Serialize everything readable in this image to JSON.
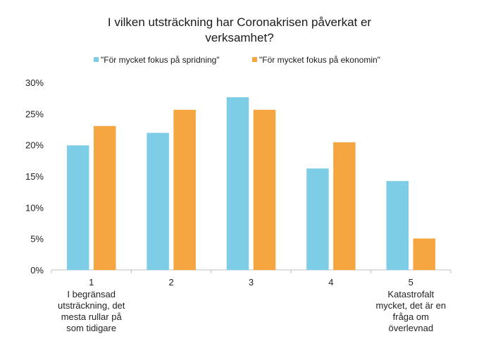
{
  "chart_data": {
    "type": "bar",
    "title": "I vilken utsträckning har Coronakrisen påverkat er verksamhet?",
    "title_lines": [
      "I vilken utsträckning har Coronakrisen påverkat er",
      "verksamhet?"
    ],
    "categories": [
      "1",
      "2",
      "3",
      "4",
      "5"
    ],
    "category_sublabels": [
      [
        "I begränsad",
        "utsträckning, det",
        "mesta rullar på",
        "som tidigare"
      ],
      [],
      [],
      [],
      [
        "Katastrofalt",
        "mycket, det är en",
        "fråga om",
        "överlevnad"
      ]
    ],
    "series": [
      {
        "name": "\"För mycket fokus på spridning\"",
        "color": "#7ECDE6",
        "values": [
          19.9,
          21.9,
          27.6,
          16.2,
          14.2
        ]
      },
      {
        "name": "\"För mycket fokus på ekonomin\"",
        "color": "#F5A641",
        "values": [
          23.0,
          25.6,
          25.6,
          20.4,
          5.0
        ]
      }
    ],
    "yticks": [
      "0%",
      "5%",
      "10%",
      "15%",
      "20%",
      "25%",
      "30%"
    ],
    "ylim": [
      0,
      30
    ],
    "grid": false,
    "legend_position": "top-center",
    "xlabel": "",
    "ylabel": ""
  }
}
